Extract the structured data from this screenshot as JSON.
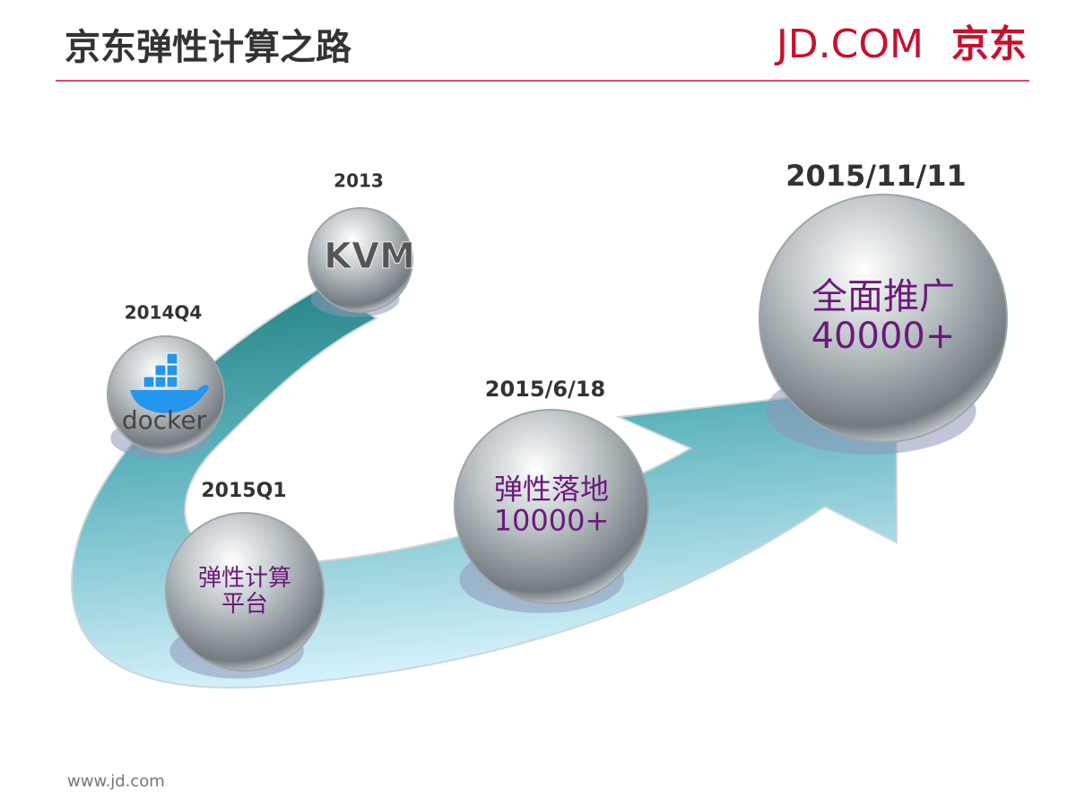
{
  "header": {
    "title": "京东弹性计算之路",
    "logo": "JD.COM",
    "logo_cn": "京东"
  },
  "milestones": [
    {
      "date": "2013",
      "logo": "KVM"
    },
    {
      "date": "2014Q4",
      "logo": "docker"
    },
    {
      "date": "2015Q1",
      "lines": [
        "弹性计算",
        "平台"
      ]
    },
    {
      "date": "2015/6/18",
      "lines": [
        "弹性落地",
        "10000+"
      ]
    },
    {
      "date": "2015/11/11",
      "lines": [
        "全面推广",
        "40000+"
      ]
    }
  ],
  "footer": {
    "url": "www.jd.com"
  }
}
